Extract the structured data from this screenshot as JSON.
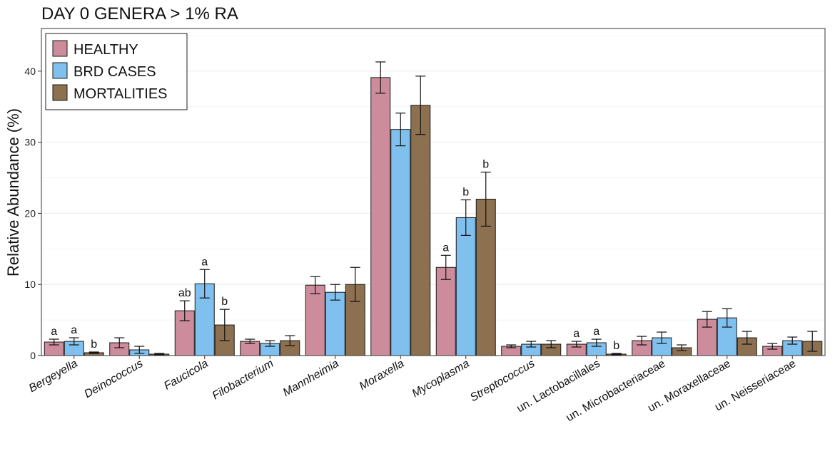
{
  "chart_data": {
    "type": "bar",
    "title": "DAY 0 GENERA > 1% RA",
    "xlabel": "",
    "ylabel": "Relative Abundance (%)",
    "ylim": [
      0,
      46
    ],
    "yticks": [
      0,
      10,
      20,
      30,
      40
    ],
    "grid": "horizontal",
    "legend_position": "top-left",
    "categories": [
      "Bergeyella",
      "Deinococcus",
      "Faucicola",
      "Filobacterium",
      "Mannheimia",
      "Moraxella",
      "Mycoplasma",
      "Streptococcus",
      "un. Lactobacillales",
      "un. Microbacteriaceae",
      "un. Moraxellaceae",
      "un. Neisseriaceae"
    ],
    "italic_categories": [
      true,
      true,
      true,
      true,
      true,
      true,
      true,
      true,
      false,
      false,
      false,
      false
    ],
    "series": [
      {
        "name": "HEALTHY",
        "color": "#cc8c9c",
        "values": [
          1.9,
          1.8,
          6.3,
          2.0,
          9.9,
          39.1,
          12.4,
          1.3,
          1.6,
          2.1,
          5.1,
          1.3
        ],
        "errors": [
          0.4,
          0.7,
          1.4,
          0.3,
          1.2,
          2.2,
          1.7,
          0.2,
          0.4,
          0.6,
          1.1,
          0.4
        ],
        "sig": [
          "a",
          "",
          "ab",
          "",
          "",
          "",
          "a",
          "",
          "a",
          "",
          "",
          ""
        ]
      },
      {
        "name": "BRD CASES",
        "color": "#80c0ee",
        "values": [
          2.0,
          0.8,
          10.1,
          1.7,
          8.9,
          31.8,
          19.4,
          1.6,
          1.8,
          2.5,
          5.3,
          2.1
        ],
        "errors": [
          0.5,
          0.5,
          2.0,
          0.4,
          1.1,
          2.3,
          2.5,
          0.4,
          0.5,
          0.8,
          1.3,
          0.5
        ],
        "sig": [
          "a",
          "",
          "a",
          "",
          "",
          "",
          "b",
          "",
          "a",
          "",
          "",
          ""
        ]
      },
      {
        "name": "MORTALITIES",
        "color": "#8c7050",
        "values": [
          0.4,
          0.2,
          4.3,
          2.1,
          10.0,
          35.2,
          22.0,
          1.6,
          0.2,
          1.1,
          2.5,
          2.0
        ],
        "errors": [
          0.1,
          0.1,
          2.2,
          0.7,
          2.4,
          4.1,
          3.8,
          0.5,
          0.1,
          0.4,
          0.9,
          1.4
        ],
        "sig": [
          "b",
          "",
          "b",
          "",
          "",
          "",
          "b",
          "",
          "b",
          "",
          "",
          ""
        ]
      }
    ]
  }
}
